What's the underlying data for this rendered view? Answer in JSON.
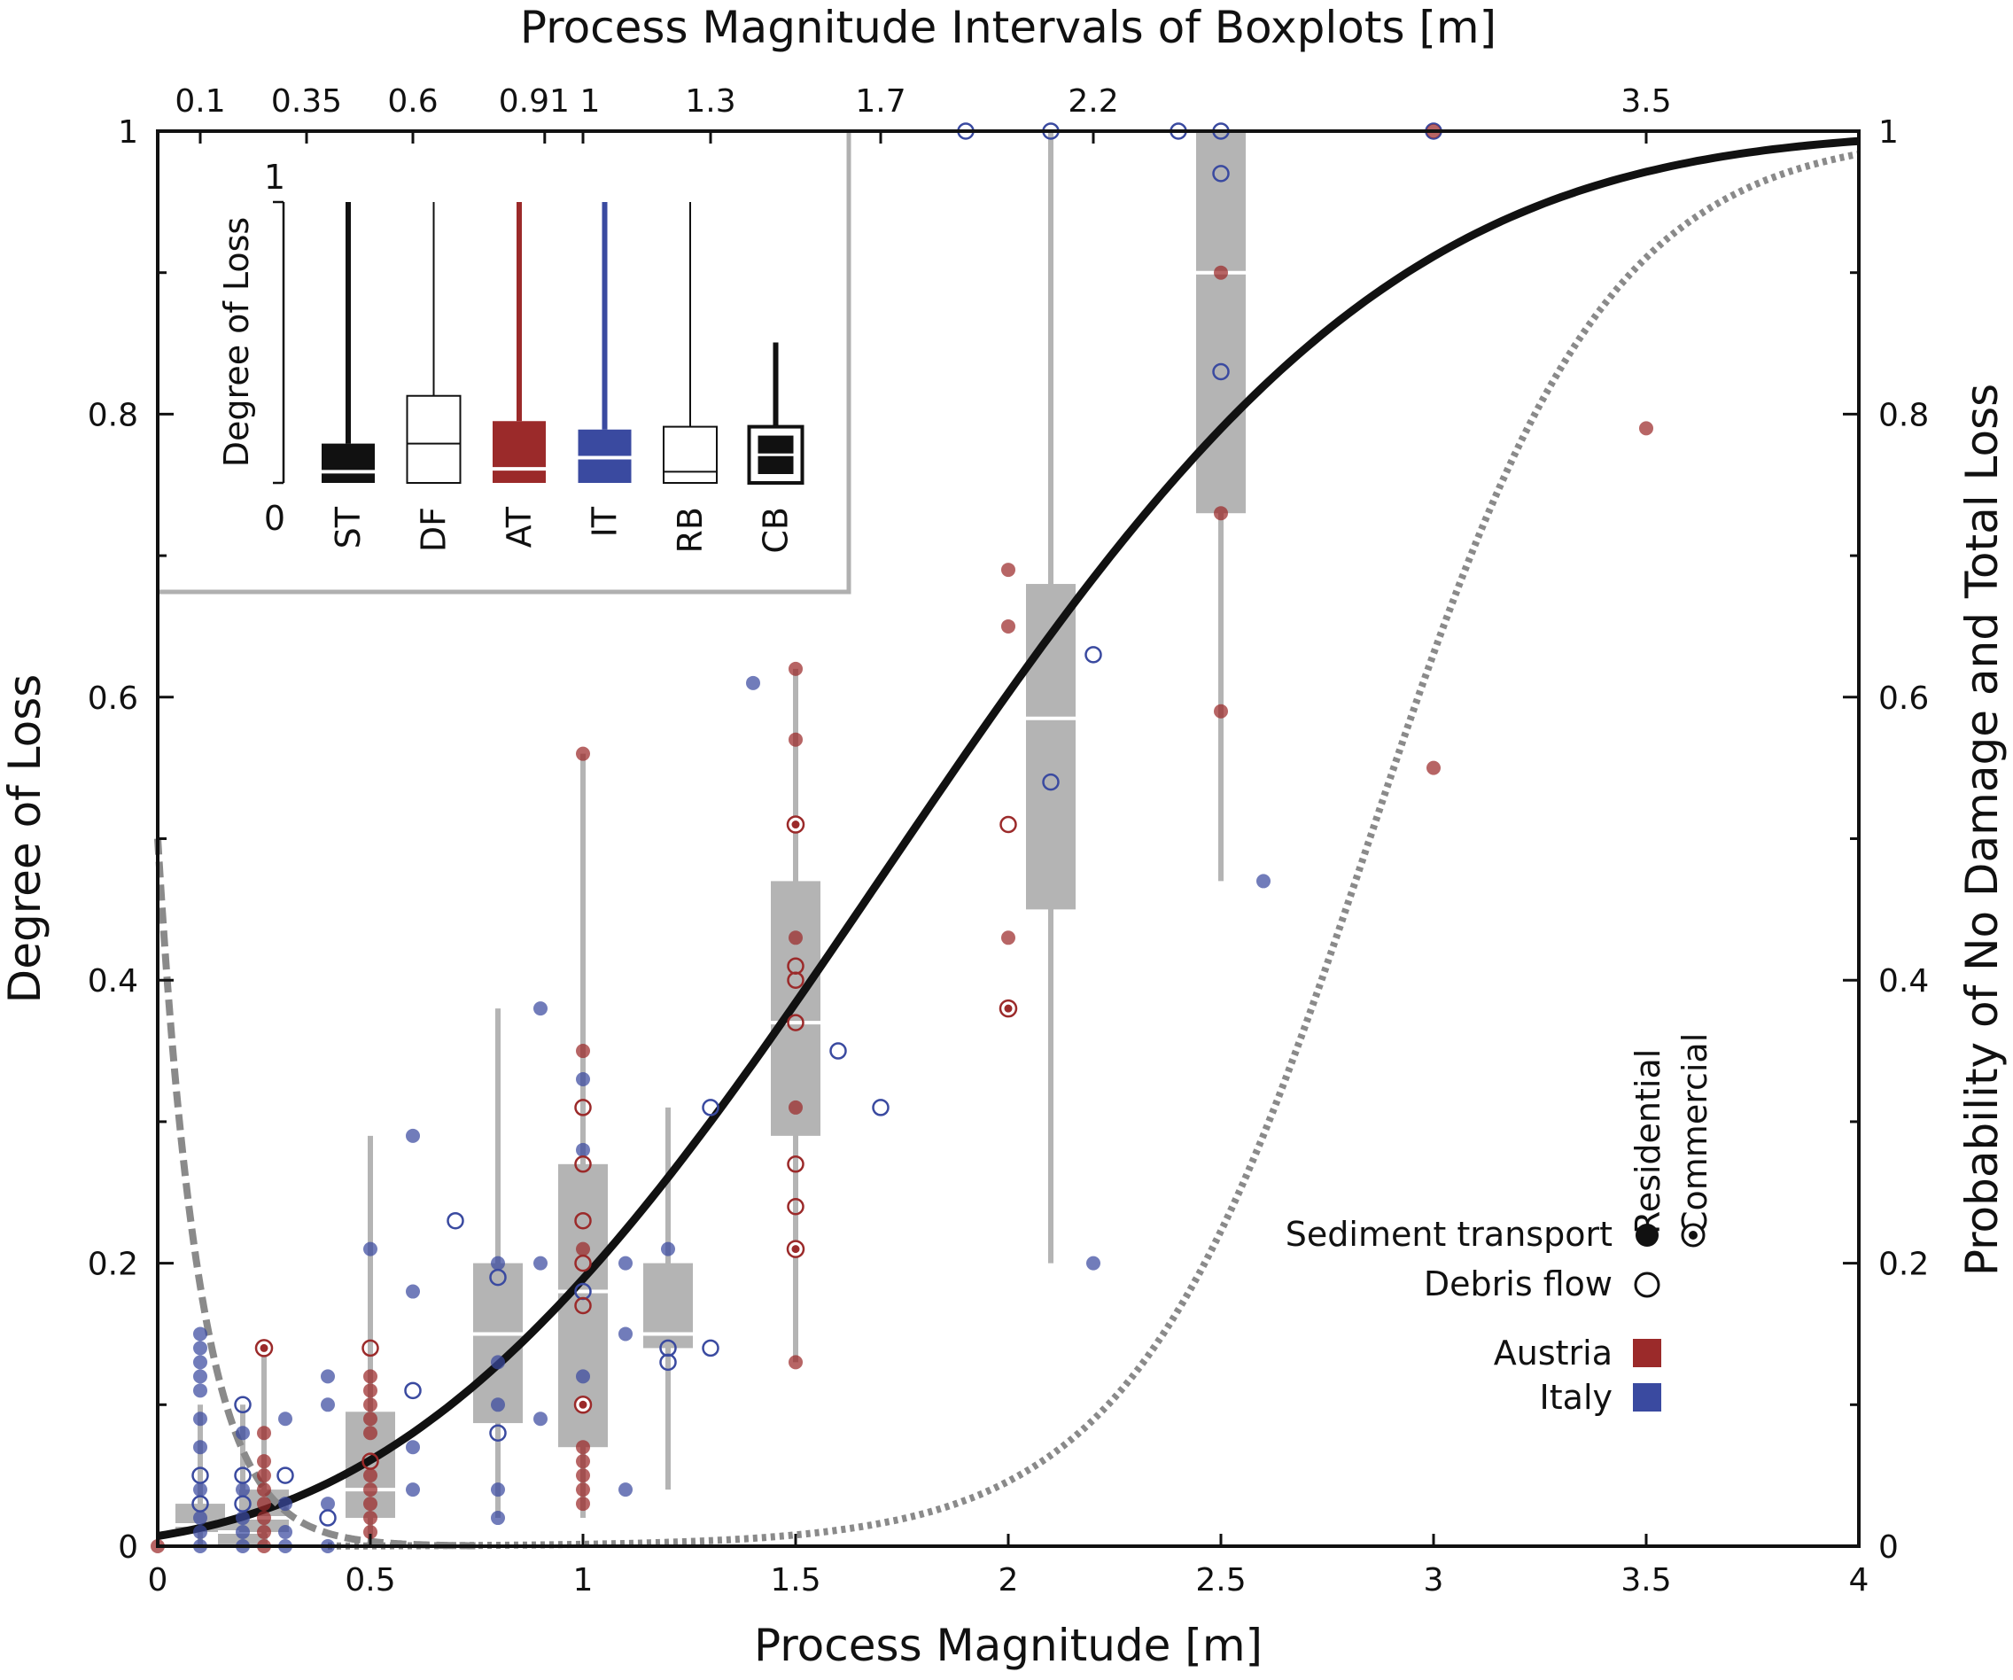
{
  "chart_data": {
    "type": "scatter",
    "xlabel": "Process Magnitude [m]",
    "ylabel": "Degree of Loss",
    "y2label": "Probability of No Damage and Total Loss",
    "top_label": "Process Magnitude Intervals of Boxplots [m]",
    "xlim": [
      0,
      4
    ],
    "ylim": [
      0,
      1
    ],
    "x_ticks": [
      0,
      0.5,
      1,
      1.5,
      2,
      2.5,
      3,
      3.5,
      4
    ],
    "x_tick_labels": [
      "0",
      "0.5",
      "1",
      "1.5",
      "2",
      "2.5",
      "3",
      "3.5",
      "4"
    ],
    "y_ticks": [
      0,
      0.2,
      0.4,
      0.6,
      0.8,
      1
    ],
    "y_tick_labels": [
      "0",
      "0.2",
      "0.4",
      "0.6",
      "0.8",
      "1"
    ],
    "y2_tick_labels": [
      "0",
      "0.2",
      "0.4",
      "0.6",
      "0.8",
      "1"
    ],
    "top_ticks": [
      {
        "x": 0.1,
        "label": "0.1"
      },
      {
        "x": 0.35,
        "label": "0.35"
      },
      {
        "x": 0.6,
        "label": "0.6"
      },
      {
        "x": 0.91,
        "label": "0.91"
      },
      {
        "x": 1.0,
        "label": "1"
      },
      {
        "x": 1.3,
        "label": "1.3"
      },
      {
        "x": 1.7,
        "label": "1.7"
      },
      {
        "x": 2.2,
        "label": "2.2"
      },
      {
        "x": 3.5,
        "label": "3.5"
      }
    ],
    "grid": false,
    "colors": {
      "austria": "#9b2a2a",
      "italy": "#3a4aa0",
      "box": "#b4b4b4",
      "curve": "#111111",
      "prob": "#8a8a8a"
    },
    "curves": {
      "vulnerability": {
        "style": "solid-black",
        "form": "weibull",
        "x0": -0.43,
        "lambda": 2.5,
        "k": 2.8
      },
      "prob_total_loss": {
        "style": "dotted-gray",
        "form": "logistic",
        "mid": 2.85,
        "scale": 0.28
      },
      "prob_no_damage": {
        "style": "dashed-gray",
        "form": "exponential",
        "y0": 0.5,
        "decay": 0.1
      }
    },
    "boxplots": [
      {
        "x": 0.1,
        "q1": 0.01,
        "median": 0.015,
        "q3": 0.03,
        "whisker_low": 0.0,
        "whisker_high": 0.1
      },
      {
        "x": 0.2,
        "q1": 0.0,
        "median": 0.01,
        "q3": 0.02,
        "whisker_low": 0.0,
        "whisker_high": 0.1
      },
      {
        "x": 0.25,
        "q1": 0.01,
        "median": 0.02,
        "q3": 0.04,
        "whisker_low": 0.0,
        "whisker_high": 0.14
      },
      {
        "x": 0.5,
        "q1": 0.02,
        "median": 0.04,
        "q3": 0.095,
        "whisker_low": 0.0,
        "whisker_high": 0.29
      },
      {
        "x": 0.8,
        "q1": 0.087,
        "median": 0.15,
        "q3": 0.2,
        "whisker_low": 0.02,
        "whisker_high": 0.38
      },
      {
        "x": 1.0,
        "q1": 0.07,
        "median": 0.18,
        "q3": 0.27,
        "whisker_low": 0.02,
        "whisker_high": 0.56
      },
      {
        "x": 1.2,
        "q1": 0.14,
        "median": 0.15,
        "q3": 0.2,
        "whisker_low": 0.04,
        "whisker_high": 0.31
      },
      {
        "x": 1.5,
        "q1": 0.29,
        "median": 0.37,
        "q3": 0.47,
        "whisker_low": 0.13,
        "whisker_high": 0.62
      },
      {
        "x": 2.1,
        "q1": 0.45,
        "median": 0.585,
        "q3": 0.68,
        "whisker_low": 0.2,
        "whisker_high": 1.0
      },
      {
        "x": 2.5,
        "q1": 0.73,
        "median": 0.9,
        "q3": 1.0,
        "whisker_low": 0.47,
        "whisker_high": 1.0
      }
    ],
    "points": [
      {
        "x": 0.0,
        "y": 0.0,
        "c": "AT",
        "t": "ST"
      },
      {
        "x": 0.1,
        "y": 0.15,
        "c": "IT",
        "t": "ST"
      },
      {
        "x": 0.1,
        "y": 0.14,
        "c": "IT",
        "t": "ST"
      },
      {
        "x": 0.1,
        "y": 0.13,
        "c": "IT",
        "t": "ST"
      },
      {
        "x": 0.1,
        "y": 0.12,
        "c": "IT",
        "t": "ST"
      },
      {
        "x": 0.1,
        "y": 0.11,
        "c": "IT",
        "t": "ST"
      },
      {
        "x": 0.1,
        "y": 0.09,
        "c": "IT",
        "t": "ST"
      },
      {
        "x": 0.1,
        "y": 0.07,
        "c": "IT",
        "t": "ST"
      },
      {
        "x": 0.1,
        "y": 0.05,
        "c": "IT",
        "t": "DF"
      },
      {
        "x": 0.1,
        "y": 0.04,
        "c": "IT",
        "t": "ST"
      },
      {
        "x": 0.1,
        "y": 0.03,
        "c": "IT",
        "t": "DF"
      },
      {
        "x": 0.1,
        "y": 0.02,
        "c": "IT",
        "t": "ST"
      },
      {
        "x": 0.1,
        "y": 0.01,
        "c": "IT",
        "t": "ST"
      },
      {
        "x": 0.1,
        "y": 0.0,
        "c": "IT",
        "t": "ST"
      },
      {
        "x": 0.2,
        "y": 0.1,
        "c": "IT",
        "t": "DF"
      },
      {
        "x": 0.2,
        "y": 0.08,
        "c": "IT",
        "t": "ST"
      },
      {
        "x": 0.2,
        "y": 0.05,
        "c": "IT",
        "t": "DF"
      },
      {
        "x": 0.2,
        "y": 0.04,
        "c": "IT",
        "t": "ST"
      },
      {
        "x": 0.2,
        "y": 0.03,
        "c": "IT",
        "t": "DF"
      },
      {
        "x": 0.2,
        "y": 0.02,
        "c": "IT",
        "t": "ST"
      },
      {
        "x": 0.2,
        "y": 0.01,
        "c": "IT",
        "t": "ST"
      },
      {
        "x": 0.2,
        "y": 0.0,
        "c": "IT",
        "t": "ST"
      },
      {
        "x": 0.25,
        "y": 0.14,
        "c": "AT",
        "t": "STC"
      },
      {
        "x": 0.25,
        "y": 0.08,
        "c": "AT",
        "t": "ST"
      },
      {
        "x": 0.25,
        "y": 0.06,
        "c": "AT",
        "t": "ST"
      },
      {
        "x": 0.25,
        "y": 0.05,
        "c": "AT",
        "t": "ST"
      },
      {
        "x": 0.25,
        "y": 0.04,
        "c": "AT",
        "t": "ST"
      },
      {
        "x": 0.25,
        "y": 0.03,
        "c": "AT",
        "t": "ST"
      },
      {
        "x": 0.25,
        "y": 0.02,
        "c": "AT",
        "t": "ST"
      },
      {
        "x": 0.25,
        "y": 0.01,
        "c": "AT",
        "t": "ST"
      },
      {
        "x": 0.25,
        "y": 0.0,
        "c": "AT",
        "t": "ST"
      },
      {
        "x": 0.3,
        "y": 0.09,
        "c": "IT",
        "t": "ST"
      },
      {
        "x": 0.3,
        "y": 0.05,
        "c": "IT",
        "t": "DF"
      },
      {
        "x": 0.3,
        "y": 0.03,
        "c": "IT",
        "t": "ST"
      },
      {
        "x": 0.3,
        "y": 0.01,
        "c": "IT",
        "t": "ST"
      },
      {
        "x": 0.3,
        "y": 0.0,
        "c": "IT",
        "t": "ST"
      },
      {
        "x": 0.4,
        "y": 0.12,
        "c": "IT",
        "t": "ST"
      },
      {
        "x": 0.4,
        "y": 0.1,
        "c": "IT",
        "t": "ST"
      },
      {
        "x": 0.4,
        "y": 0.03,
        "c": "IT",
        "t": "ST"
      },
      {
        "x": 0.4,
        "y": 0.02,
        "c": "IT",
        "t": "DF"
      },
      {
        "x": 0.4,
        "y": 0.0,
        "c": "IT",
        "t": "ST"
      },
      {
        "x": 0.5,
        "y": 0.14,
        "c": "AT",
        "t": "DF"
      },
      {
        "x": 0.5,
        "y": 0.12,
        "c": "AT",
        "t": "ST"
      },
      {
        "x": 0.5,
        "y": 0.11,
        "c": "AT",
        "t": "ST"
      },
      {
        "x": 0.5,
        "y": 0.1,
        "c": "AT",
        "t": "ST"
      },
      {
        "x": 0.5,
        "y": 0.09,
        "c": "AT",
        "t": "ST"
      },
      {
        "x": 0.5,
        "y": 0.08,
        "c": "AT",
        "t": "ST"
      },
      {
        "x": 0.5,
        "y": 0.06,
        "c": "AT",
        "t": "DF"
      },
      {
        "x": 0.5,
        "y": 0.05,
        "c": "AT",
        "t": "ST"
      },
      {
        "x": 0.5,
        "y": 0.04,
        "c": "AT",
        "t": "ST"
      },
      {
        "x": 0.5,
        "y": 0.03,
        "c": "AT",
        "t": "ST"
      },
      {
        "x": 0.5,
        "y": 0.02,
        "c": "AT",
        "t": "ST"
      },
      {
        "x": 0.5,
        "y": 0.01,
        "c": "AT",
        "t": "ST"
      },
      {
        "x": 0.5,
        "y": 0.21,
        "c": "IT",
        "t": "ST"
      },
      {
        "x": 0.6,
        "y": 0.29,
        "c": "IT",
        "t": "ST"
      },
      {
        "x": 0.6,
        "y": 0.18,
        "c": "IT",
        "t": "ST"
      },
      {
        "x": 0.6,
        "y": 0.11,
        "c": "IT",
        "t": "DF"
      },
      {
        "x": 0.6,
        "y": 0.07,
        "c": "IT",
        "t": "ST"
      },
      {
        "x": 0.6,
        "y": 0.04,
        "c": "IT",
        "t": "ST"
      },
      {
        "x": 0.7,
        "y": 0.23,
        "c": "IT",
        "t": "DF"
      },
      {
        "x": 0.8,
        "y": 0.2,
        "c": "IT",
        "t": "ST"
      },
      {
        "x": 0.8,
        "y": 0.19,
        "c": "IT",
        "t": "DF"
      },
      {
        "x": 0.8,
        "y": 0.13,
        "c": "IT",
        "t": "ST"
      },
      {
        "x": 0.8,
        "y": 0.1,
        "c": "IT",
        "t": "ST"
      },
      {
        "x": 0.8,
        "y": 0.08,
        "c": "IT",
        "t": "DF"
      },
      {
        "x": 0.8,
        "y": 0.04,
        "c": "IT",
        "t": "ST"
      },
      {
        "x": 0.8,
        "y": 0.02,
        "c": "IT",
        "t": "ST"
      },
      {
        "x": 0.9,
        "y": 0.38,
        "c": "IT",
        "t": "ST"
      },
      {
        "x": 0.9,
        "y": 0.2,
        "c": "IT",
        "t": "ST"
      },
      {
        "x": 0.9,
        "y": 0.09,
        "c": "IT",
        "t": "ST"
      },
      {
        "x": 1.0,
        "y": 0.56,
        "c": "AT",
        "t": "ST"
      },
      {
        "x": 1.0,
        "y": 0.35,
        "c": "AT",
        "t": "ST"
      },
      {
        "x": 1.0,
        "y": 0.33,
        "c": "IT",
        "t": "ST"
      },
      {
        "x": 1.0,
        "y": 0.31,
        "c": "AT",
        "t": "DF"
      },
      {
        "x": 1.0,
        "y": 0.28,
        "c": "IT",
        "t": "ST"
      },
      {
        "x": 1.0,
        "y": 0.27,
        "c": "AT",
        "t": "DF"
      },
      {
        "x": 1.0,
        "y": 0.23,
        "c": "AT",
        "t": "DF"
      },
      {
        "x": 1.0,
        "y": 0.21,
        "c": "AT",
        "t": "ST"
      },
      {
        "x": 1.0,
        "y": 0.2,
        "c": "AT",
        "t": "DF"
      },
      {
        "x": 1.0,
        "y": 0.18,
        "c": "IT",
        "t": "DF"
      },
      {
        "x": 1.0,
        "y": 0.17,
        "c": "AT",
        "t": "DF"
      },
      {
        "x": 1.0,
        "y": 0.12,
        "c": "IT",
        "t": "ST"
      },
      {
        "x": 1.0,
        "y": 0.1,
        "c": "AT",
        "t": "STC"
      },
      {
        "x": 1.0,
        "y": 0.07,
        "c": "AT",
        "t": "ST"
      },
      {
        "x": 1.0,
        "y": 0.06,
        "c": "AT",
        "t": "ST"
      },
      {
        "x": 1.0,
        "y": 0.05,
        "c": "AT",
        "t": "ST"
      },
      {
        "x": 1.0,
        "y": 0.04,
        "c": "AT",
        "t": "ST"
      },
      {
        "x": 1.0,
        "y": 0.03,
        "c": "AT",
        "t": "ST"
      },
      {
        "x": 1.1,
        "y": 0.2,
        "c": "IT",
        "t": "ST"
      },
      {
        "x": 1.1,
        "y": 0.15,
        "c": "IT",
        "t": "ST"
      },
      {
        "x": 1.1,
        "y": 0.04,
        "c": "IT",
        "t": "ST"
      },
      {
        "x": 1.2,
        "y": 0.21,
        "c": "IT",
        "t": "ST"
      },
      {
        "x": 1.2,
        "y": 0.14,
        "c": "IT",
        "t": "DF"
      },
      {
        "x": 1.2,
        "y": 0.13,
        "c": "IT",
        "t": "DF"
      },
      {
        "x": 1.3,
        "y": 0.31,
        "c": "IT",
        "t": "DF"
      },
      {
        "x": 1.3,
        "y": 0.14,
        "c": "IT",
        "t": "DF"
      },
      {
        "x": 1.4,
        "y": 0.61,
        "c": "IT",
        "t": "ST"
      },
      {
        "x": 1.5,
        "y": 0.62,
        "c": "AT",
        "t": "ST"
      },
      {
        "x": 1.5,
        "y": 0.57,
        "c": "AT",
        "t": "ST"
      },
      {
        "x": 1.5,
        "y": 0.51,
        "c": "AT",
        "t": "STC"
      },
      {
        "x": 1.5,
        "y": 0.43,
        "c": "AT",
        "t": "ST"
      },
      {
        "x": 1.5,
        "y": 0.41,
        "c": "AT",
        "t": "DF"
      },
      {
        "x": 1.5,
        "y": 0.4,
        "c": "AT",
        "t": "DF"
      },
      {
        "x": 1.5,
        "y": 0.37,
        "c": "AT",
        "t": "DF"
      },
      {
        "x": 1.5,
        "y": 0.31,
        "c": "AT",
        "t": "ST"
      },
      {
        "x": 1.5,
        "y": 0.27,
        "c": "AT",
        "t": "DF"
      },
      {
        "x": 1.5,
        "y": 0.24,
        "c": "AT",
        "t": "DF"
      },
      {
        "x": 1.5,
        "y": 0.21,
        "c": "AT",
        "t": "STC"
      },
      {
        "x": 1.5,
        "y": 0.13,
        "c": "AT",
        "t": "ST"
      },
      {
        "x": 1.6,
        "y": 0.35,
        "c": "IT",
        "t": "DF"
      },
      {
        "x": 1.7,
        "y": 0.31,
        "c": "IT",
        "t": "DF"
      },
      {
        "x": 1.9,
        "y": 1.0,
        "c": "IT",
        "t": "DF"
      },
      {
        "x": 2.0,
        "y": 0.69,
        "c": "AT",
        "t": "ST"
      },
      {
        "x": 2.0,
        "y": 0.65,
        "c": "AT",
        "t": "ST"
      },
      {
        "x": 2.0,
        "y": 0.51,
        "c": "AT",
        "t": "DF"
      },
      {
        "x": 2.0,
        "y": 0.43,
        "c": "AT",
        "t": "ST"
      },
      {
        "x": 2.0,
        "y": 0.38,
        "c": "AT",
        "t": "STC"
      },
      {
        "x": 2.1,
        "y": 1.0,
        "c": "IT",
        "t": "DF"
      },
      {
        "x": 2.1,
        "y": 0.54,
        "c": "IT",
        "t": "DF"
      },
      {
        "x": 2.2,
        "y": 0.63,
        "c": "IT",
        "t": "DF"
      },
      {
        "x": 2.2,
        "y": 0.2,
        "c": "IT",
        "t": "ST"
      },
      {
        "x": 2.4,
        "y": 1.0,
        "c": "IT",
        "t": "DF"
      },
      {
        "x": 2.5,
        "y": 1.0,
        "c": "IT",
        "t": "DF"
      },
      {
        "x": 2.5,
        "y": 0.97,
        "c": "IT",
        "t": "DF"
      },
      {
        "x": 2.5,
        "y": 0.9,
        "c": "AT",
        "t": "ST"
      },
      {
        "x": 2.5,
        "y": 0.83,
        "c": "IT",
        "t": "DF"
      },
      {
        "x": 2.5,
        "y": 0.73,
        "c": "AT",
        "t": "ST"
      },
      {
        "x": 2.5,
        "y": 0.59,
        "c": "AT",
        "t": "ST"
      },
      {
        "x": 2.6,
        "y": 0.47,
        "c": "IT",
        "t": "ST"
      },
      {
        "x": 3.0,
        "y": 1.0,
        "c": "IT",
        "t": "DF"
      },
      {
        "x": 3.0,
        "y": 1.0,
        "c": "AT",
        "t": "ST"
      },
      {
        "x": 3.0,
        "y": 0.55,
        "c": "AT",
        "t": "ST"
      },
      {
        "x": 3.5,
        "y": 0.79,
        "c": "AT",
        "t": "ST"
      }
    ],
    "inset": {
      "ylabel": "Degree of Loss",
      "top_label": "1",
      "bottom_label": "0",
      "boxes": [
        {
          "key": "ST",
          "label": "ST",
          "style": "filled",
          "color": "#111111",
          "q1": 0.02,
          "median": 0.04,
          "q3": 0.14,
          "whisker_high": 1.0
        },
        {
          "key": "DF",
          "label": "DF",
          "style": "open",
          "color": "#111111",
          "q1": 0.05,
          "median": 0.14,
          "q3": 0.31,
          "whisker_high": 1.0
        },
        {
          "key": "AT",
          "label": "AT",
          "style": "filled",
          "color": "#9b2a2a",
          "q1": 0.02,
          "median": 0.05,
          "q3": 0.22,
          "whisker_high": 1.0
        },
        {
          "key": "IT",
          "label": "IT",
          "style": "filled",
          "color": "#3a4aa0",
          "q1": 0.02,
          "median": 0.09,
          "q3": 0.19,
          "whisker_high": 1.0
        },
        {
          "key": "RB",
          "label": "RB",
          "style": "open",
          "color": "#111111",
          "q1": 0.01,
          "median": 0.04,
          "q3": 0.2,
          "whisker_high": 1.0
        },
        {
          "key": "CB",
          "label": "CB",
          "style": "filled-outline",
          "color": "#111111",
          "q1": 0.05,
          "median": 0.1,
          "q3": 0.2,
          "whisker_high": 0.5
        }
      ]
    },
    "legend": {
      "residential": "Residential",
      "commercial": "Commercial",
      "sediment": "Sediment transport",
      "debris": "Debris flow",
      "austria": "Austria",
      "italy": "Italy",
      "placement": "lower-right"
    }
  }
}
